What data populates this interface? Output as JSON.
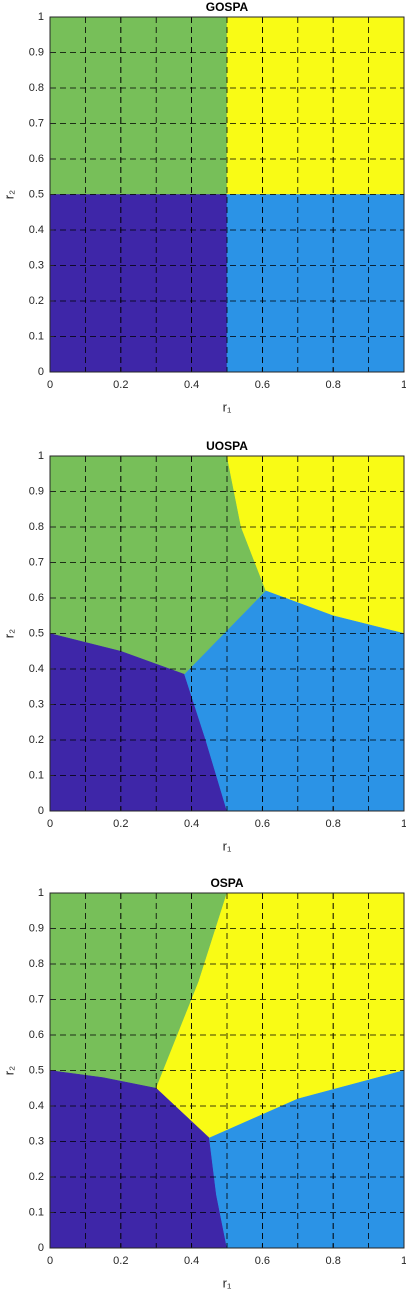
{
  "chart_data": [
    {
      "type": "region",
      "title": "GOSPA",
      "xlabel": "r₁",
      "ylabel": "r₂",
      "xlim": [
        0,
        1
      ],
      "ylim": [
        0,
        1
      ],
      "xticks": [
        0,
        0.2,
        0.4,
        0.6,
        0.8,
        1
      ],
      "yticks": [
        0,
        0.1,
        0.2,
        0.3,
        0.4,
        0.5,
        0.6,
        0.7,
        0.8,
        0.9,
        1
      ],
      "grid": true,
      "series": [
        {
          "color": "#77bf59",
          "x": [
            0,
            0.5,
            0.5,
            0
          ],
          "values": [
            0.5,
            0.5,
            1,
            1
          ]
        },
        {
          "color": "#f9fb15",
          "x": [
            0.5,
            1,
            1,
            0.5
          ],
          "values": [
            0.5,
            0.5,
            1,
            1
          ]
        },
        {
          "color": "#3e26a8",
          "x": [
            0,
            0.5,
            0.5,
            0
          ],
          "values": [
            0,
            0,
            0.5,
            0.5
          ]
        },
        {
          "color": "#2b93e6",
          "x": [
            0.5,
            1,
            1,
            0.5
          ],
          "values": [
            0,
            0,
            0.5,
            0.5
          ]
        }
      ]
    },
    {
      "type": "region",
      "title": "UOSPA",
      "xlabel": "r₁",
      "ylabel": "r₂",
      "xlim": [
        0,
        1
      ],
      "ylim": [
        0,
        1
      ],
      "xticks": [
        0,
        0.2,
        0.4,
        0.6,
        0.8,
        1
      ],
      "yticks": [
        0,
        0.1,
        0.2,
        0.3,
        0.4,
        0.5,
        0.6,
        0.7,
        0.8,
        0.9,
        1
      ],
      "grid": true,
      "series": [
        {
          "color": "#77bf59",
          "x": [
            0,
            0.2,
            0.38,
            0.61,
            0.54,
            0.5,
            0
          ],
          "values": [
            0.5,
            0.45,
            0.385,
            0.62,
            0.8,
            1,
            1
          ]
        },
        {
          "color": "#f9fb15",
          "x": [
            0.5,
            0.54,
            0.61,
            0.8,
            1,
            1
          ],
          "values": [
            1,
            0.8,
            0.62,
            0.55,
            0.5,
            1
          ]
        },
        {
          "color": "#3e26a8",
          "x": [
            0,
            0.5,
            0.44,
            0.38,
            0.2,
            0
          ],
          "values": [
            0,
            0,
            0.2,
            0.385,
            0.45,
            0.5
          ]
        },
        {
          "color": "#2b93e6",
          "x": [
            0.5,
            1,
            1,
            0.8,
            0.61,
            0.38,
            0.44
          ],
          "values": [
            0,
            0,
            0.5,
            0.55,
            0.62,
            0.385,
            0.2
          ]
        }
      ]
    },
    {
      "type": "region",
      "title": "OSPA",
      "xlabel": "r₁",
      "ylabel": "r₂",
      "xlim": [
        0,
        1
      ],
      "ylim": [
        0,
        1
      ],
      "xticks": [
        0,
        0.2,
        0.4,
        0.6,
        0.8,
        1
      ],
      "yticks": [
        0,
        0.1,
        0.2,
        0.3,
        0.4,
        0.5,
        0.6,
        0.7,
        0.8,
        0.9,
        1
      ],
      "grid": true,
      "series": [
        {
          "color": "#77bf59",
          "x": [
            0,
            0.15,
            0.3,
            0.42,
            0.5,
            0
          ],
          "values": [
            0.5,
            0.48,
            0.45,
            0.75,
            1,
            1
          ]
        },
        {
          "color": "#f9fb15",
          "x": [
            0.5,
            0.42,
            0.3,
            0.45,
            0.7,
            1,
            1
          ],
          "values": [
            1,
            0.75,
            0.45,
            0.31,
            0.42,
            0.5,
            1
          ]
        },
        {
          "color": "#3e26a8",
          "x": [
            0,
            0.5,
            0.47,
            0.45,
            0.3,
            0.15,
            0
          ],
          "values": [
            0,
            0,
            0.15,
            0.31,
            0.45,
            0.48,
            0.5
          ]
        },
        {
          "color": "#2b93e6",
          "x": [
            0.5,
            1,
            1,
            0.7,
            0.45,
            0.47
          ],
          "values": [
            0,
            0,
            0.5,
            0.42,
            0.31,
            0.15
          ]
        }
      ]
    }
  ]
}
